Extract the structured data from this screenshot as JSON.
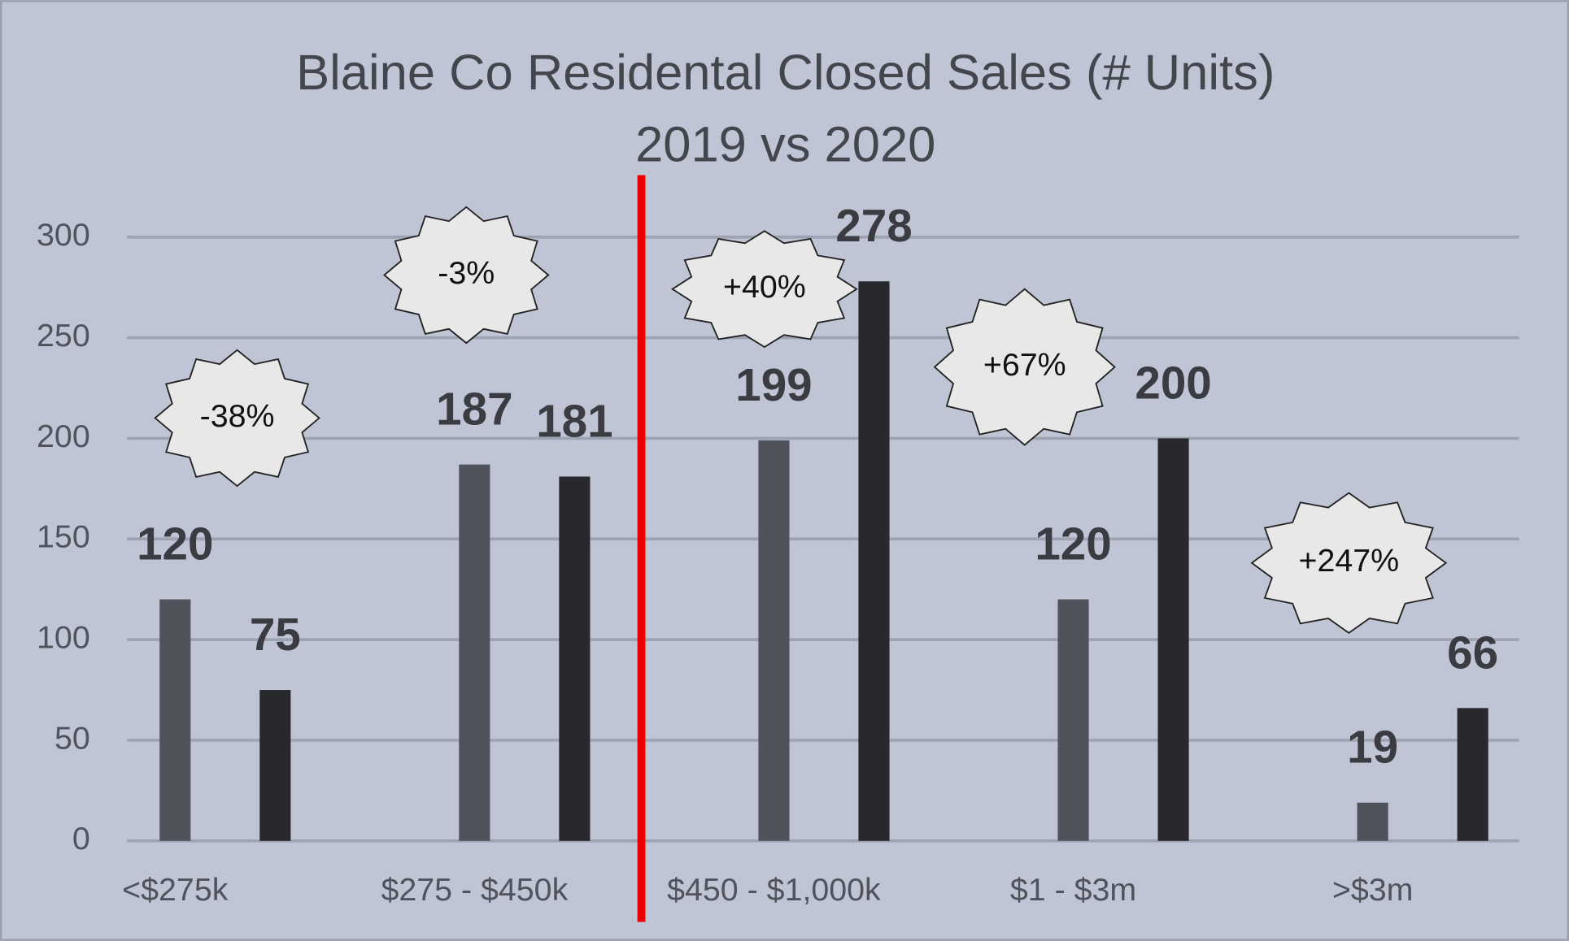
{
  "chart_data": {
    "type": "bar",
    "title": "Blaine Co Residental Closed Sales (# Units)",
    "subtitle": "2019 vs 2020",
    "categories": [
      "<$275k",
      "$275 - $450k",
      "$450 - $1,000k",
      "$1 - $3m",
      ">$3m"
    ],
    "series": [
      {
        "color": "#50535b",
        "values": [
          120,
          187,
          199,
          120,
          19
        ]
      },
      {
        "color": "#28292d",
        "values": [
          75,
          181,
          278,
          200,
          66
        ]
      }
    ],
    "ylim": [
      0,
      300
    ],
    "yticks": [
      0,
      50,
      100,
      150,
      200,
      250,
      300
    ],
    "grid": true,
    "annotations": [
      "-38%",
      "-3%",
      "+40%",
      "+67%",
      "+247%"
    ]
  }
}
